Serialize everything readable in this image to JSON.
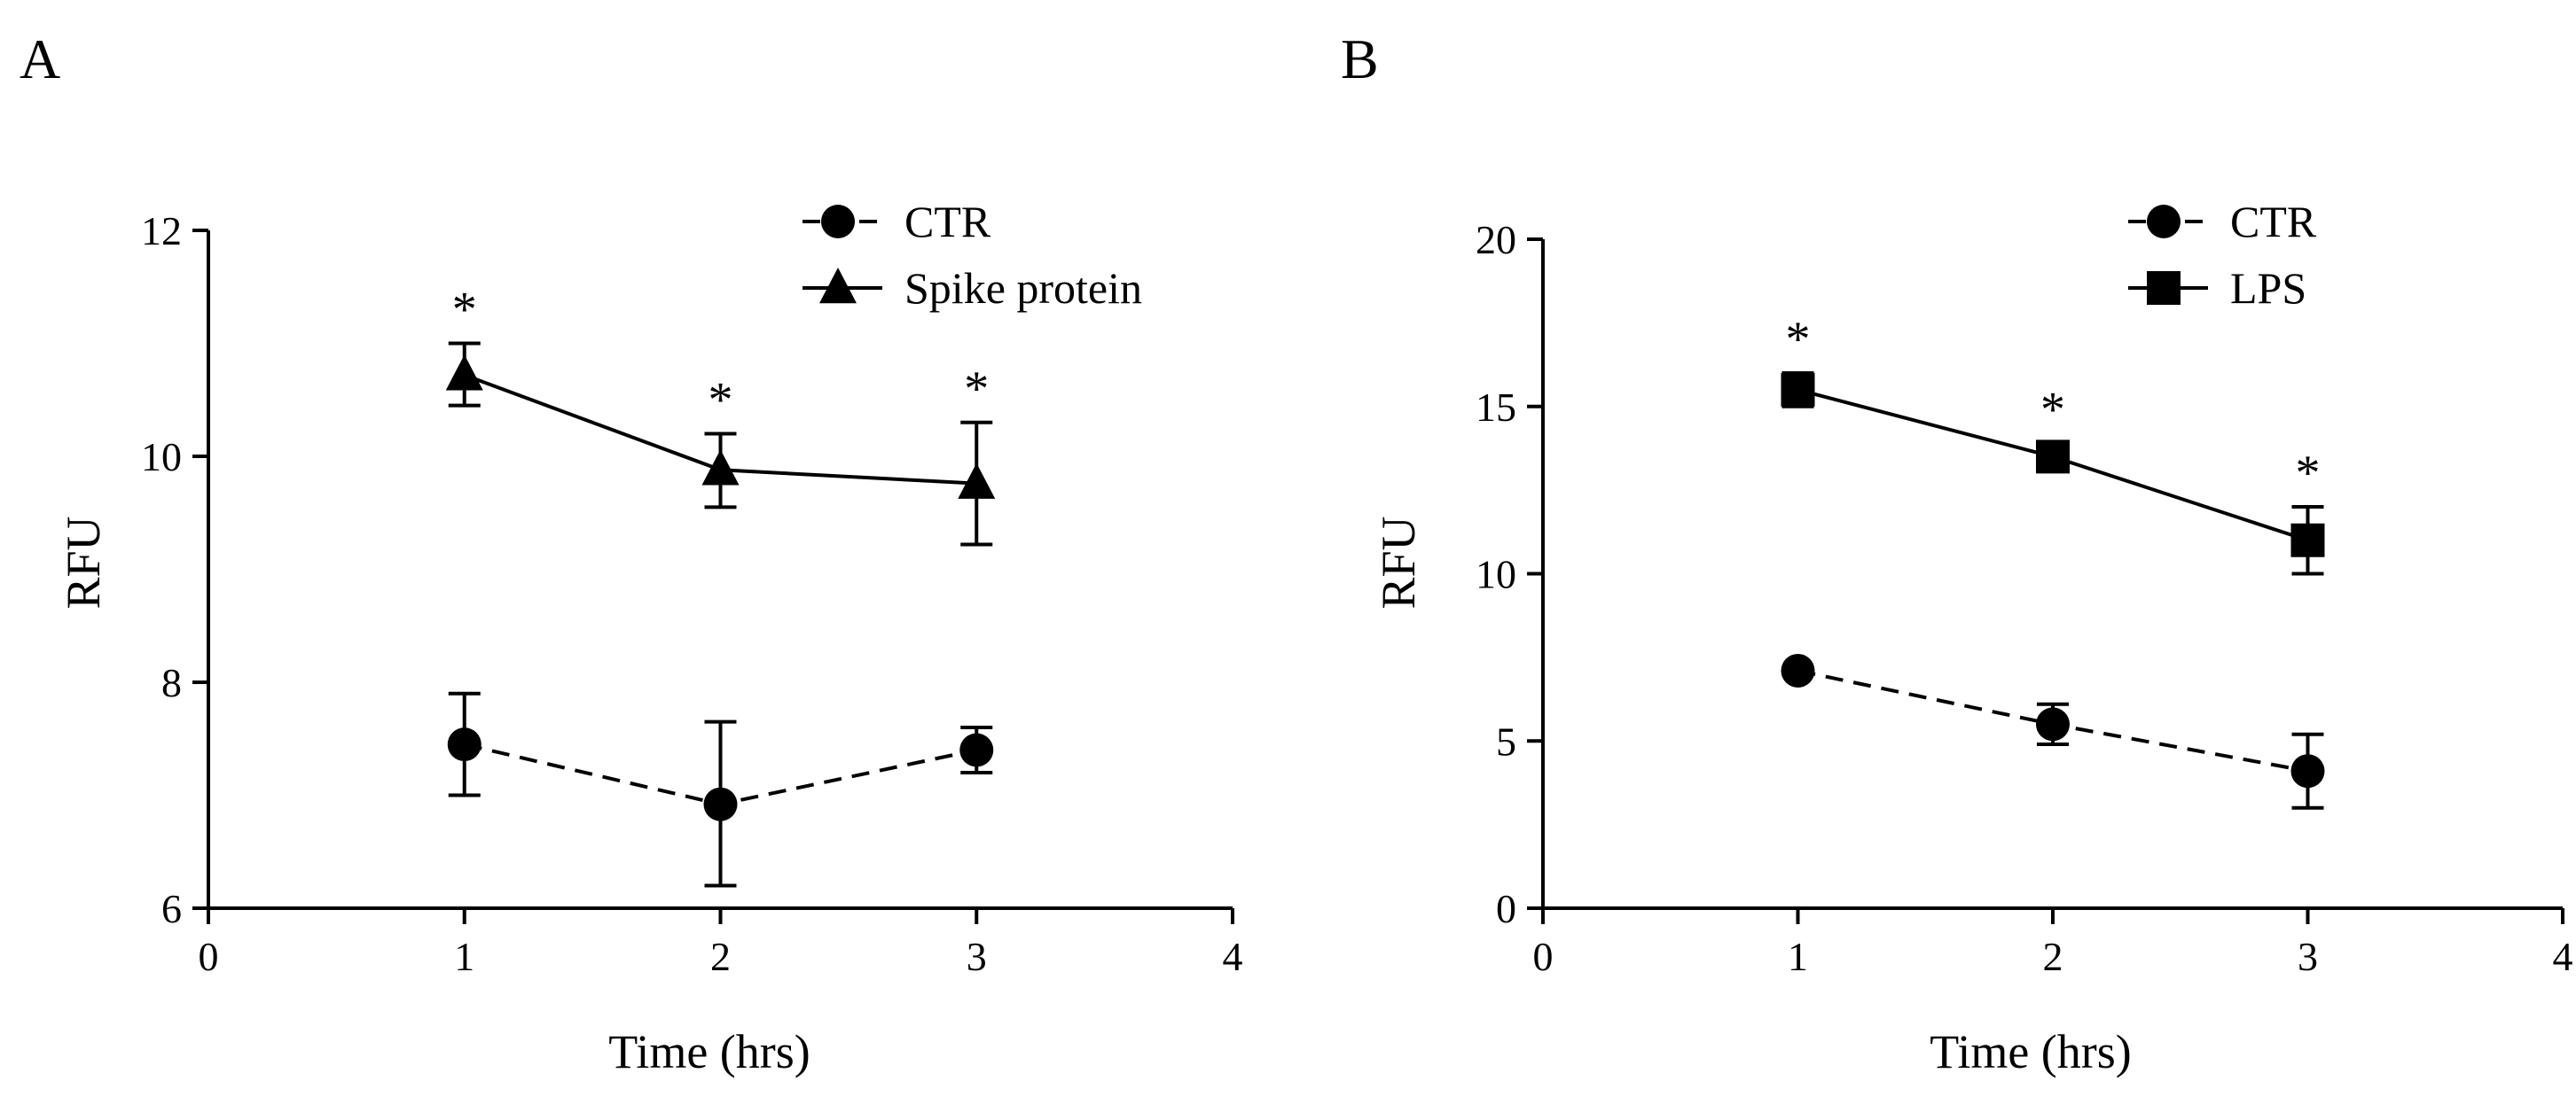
{
  "chart_data": [
    {
      "panel": "A",
      "type": "line",
      "xlabel": "Time (hrs)",
      "ylabel": "RFU",
      "xlim": [
        0,
        4
      ],
      "ylim": [
        6,
        12
      ],
      "xticks": [
        0,
        1,
        2,
        3,
        4
      ],
      "yticks": [
        6,
        8,
        10,
        12
      ],
      "legend_position": "top-right",
      "series": [
        {
          "name": "CTR",
          "marker": "circle",
          "line": "dashed",
          "x": [
            1,
            2,
            3
          ],
          "values": [
            7.45,
            6.92,
            7.4
          ],
          "error_low": [
            7.0,
            6.2,
            7.2
          ],
          "error_high": [
            7.9,
            7.65,
            7.6
          ]
        },
        {
          "name": "Spike protein",
          "marker": "triangle",
          "line": "solid",
          "x": [
            1,
            2,
            3
          ],
          "values": [
            10.72,
            9.88,
            9.76
          ],
          "error_low": [
            10.45,
            9.55,
            9.22
          ],
          "error_high": [
            11.0,
            10.2,
            10.3
          ],
          "significance": [
            "*",
            "*",
            "*"
          ]
        }
      ],
      "grid": false
    },
    {
      "panel": "B",
      "type": "line",
      "xlabel": "Time (hrs)",
      "ylabel": "RFU",
      "xlim": [
        0,
        4
      ],
      "ylim": [
        0,
        20
      ],
      "xticks": [
        0,
        1,
        2,
        3,
        4
      ],
      "yticks": [
        0,
        5,
        10,
        15,
        20
      ],
      "legend_position": "top-right",
      "series": [
        {
          "name": "CTR",
          "marker": "circle",
          "line": "dashed",
          "x": [
            1,
            2,
            3
          ],
          "values": [
            7.1,
            5.5,
            4.1
          ],
          "error_low": [
            7.1,
            4.9,
            3.0
          ],
          "error_high": [
            7.1,
            6.1,
            5.2
          ]
        },
        {
          "name": "LPS",
          "marker": "square",
          "line": "solid",
          "x": [
            1,
            2,
            3
          ],
          "values": [
            15.5,
            13.5,
            11.0
          ],
          "error_low": [
            15.0,
            13.1,
            10.0
          ],
          "error_high": [
            16.0,
            13.9,
            12.0
          ],
          "significance": [
            "*",
            "*",
            "*"
          ]
        }
      ],
      "grid": false
    }
  ]
}
